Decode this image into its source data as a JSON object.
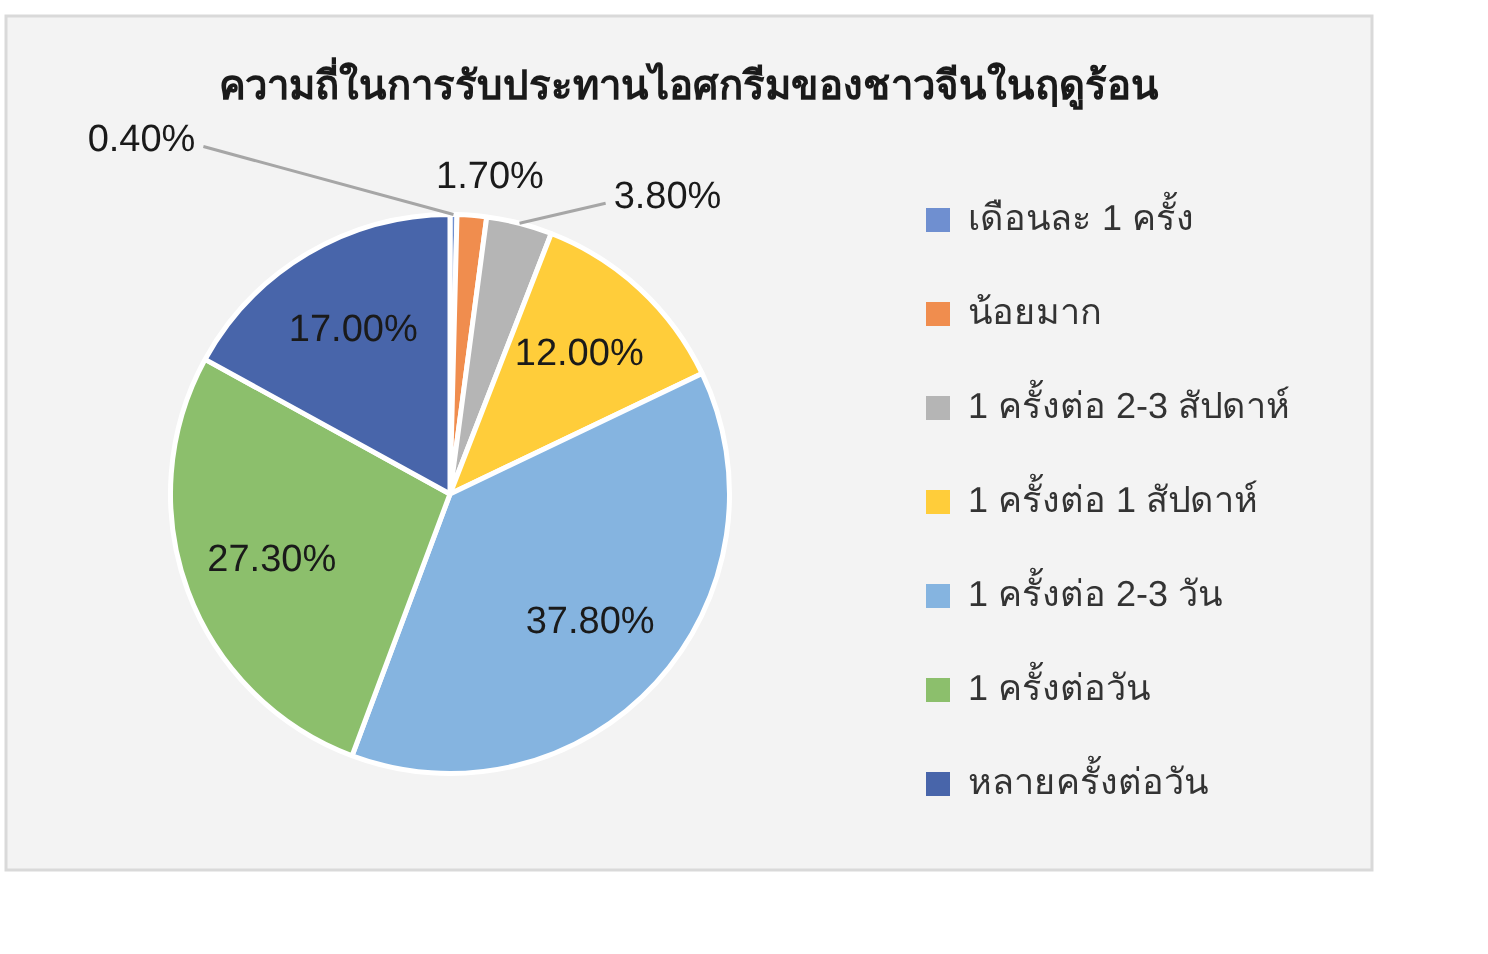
{
  "chart_data": {
    "type": "pie",
    "title": "ความถี่ในการรับประทานไอศกรีมของชาวจีนในฤดูร้อน",
    "categories": [
      "เดือนละ 1 ครั้ง",
      "น้อยมาก",
      "1 ครั้งต่อ 2-3 สัปดาห์",
      "1 ครั้งต่อ 1 สัปดาห์",
      "1 ครั้งต่อ 2-3 วัน",
      "1 ครั้งต่อวัน",
      "หลายครั้งต่อวัน"
    ],
    "values": [
      0.4,
      1.7,
      3.8,
      12,
      37.8,
      27.3,
      17
    ],
    "value_labels": [
      "0.40%",
      "1.70%",
      "3.80%",
      "12.00%",
      "37.80%",
      "27.30%",
      "17.00%"
    ],
    "colors": [
      "#6f8fd0",
      "#f08d4e",
      "#b5b5b5",
      "#ffcd3a",
      "#85b4e0",
      "#8cbf6c",
      "#4865aa"
    ],
    "legend": "right"
  }
}
